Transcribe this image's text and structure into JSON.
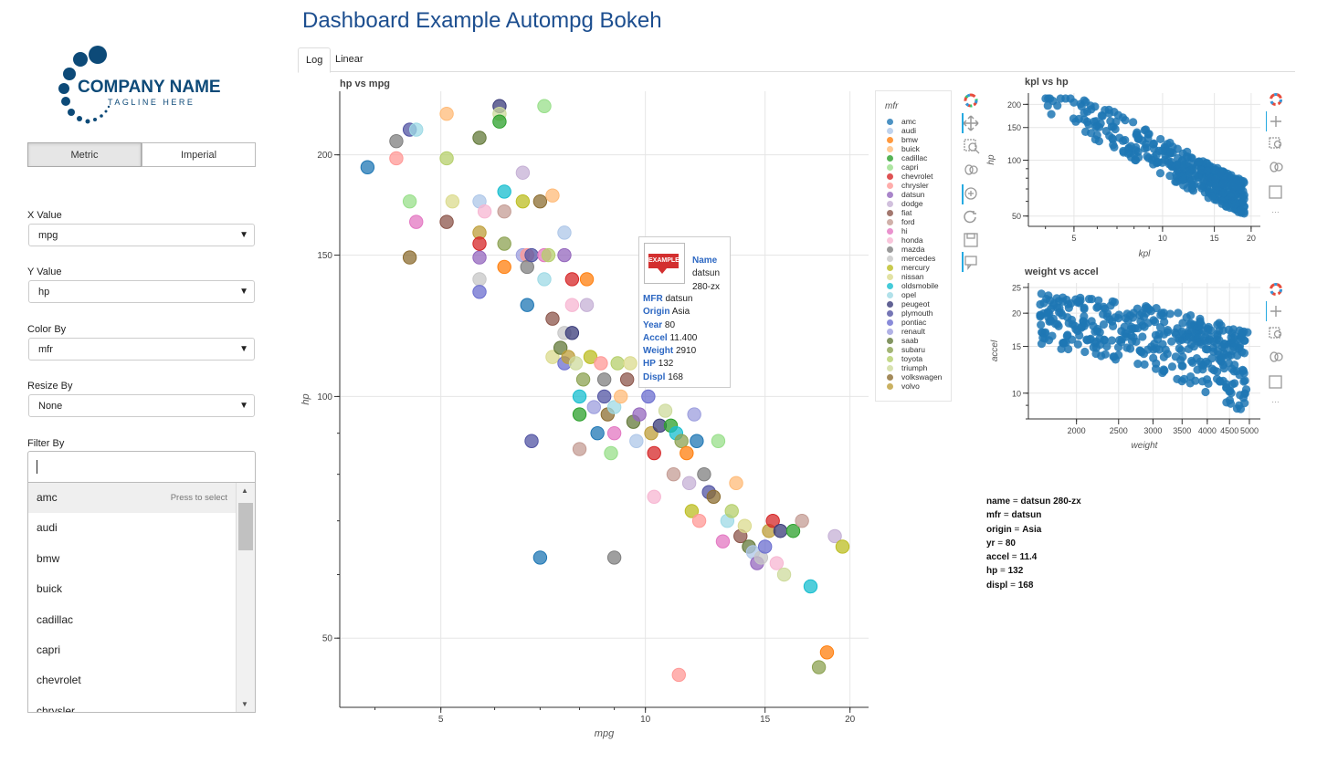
{
  "header": {
    "title": "Dashboard Example Autompg Bokeh"
  },
  "tabs": [
    {
      "label": "Log"
    },
    {
      "label": "Linear"
    }
  ],
  "logo": {
    "name": "COMPANY NAME",
    "tagline": "TAGLINE HERE"
  },
  "units": {
    "options": [
      "Metric",
      "Imperial"
    ],
    "selected": "Metric"
  },
  "controls": {
    "x": {
      "label": "X Value",
      "value": "mpg"
    },
    "y": {
      "label": "Y Value",
      "value": "hp"
    },
    "color": {
      "label": "Color By",
      "value": "mfr"
    },
    "resize": {
      "label": "Resize By",
      "value": "None"
    },
    "filter": {
      "label": "Filter By",
      "value": "",
      "hint": "Press to select",
      "options": [
        "amc",
        "audi",
        "bmw",
        "buick",
        "cadillac",
        "capri",
        "chevrolet",
        "chrysler"
      ]
    }
  },
  "main_plot": {
    "title": "hp vs mpg",
    "xlabel": "mpg",
    "ylabel": "hp",
    "legend_title": "mfr",
    "legend": [
      "amc",
      "audi",
      "bmw",
      "buick",
      "cadillac",
      "capri",
      "chevrolet",
      "chrysler",
      "datsun",
      "dodge",
      "fiat",
      "ford",
      "hi",
      "honda",
      "mazda",
      "mercedes",
      "mercury",
      "nissan",
      "oldsmobile",
      "opel",
      "peugeot",
      "plymouth",
      "pontiac",
      "renault",
      "saab",
      "subaru",
      "toyota",
      "triumph",
      "volkswagen",
      "volvo"
    ],
    "legend_colors": [
      "#1f77b4",
      "#aec7e8",
      "#ff7f0e",
      "#ffbb78",
      "#2ca02c",
      "#98df8a",
      "#d62728",
      "#ff9896",
      "#9467bd",
      "#c5b0d5",
      "#8c564b",
      "#c49c94",
      "#e377c2",
      "#f7b6d2",
      "#7f7f7f",
      "#c7c7c7",
      "#bcbd22",
      "#dbdb8d",
      "#17becf",
      "#9edae5",
      "#393b79",
      "#5254a3",
      "#6b6ecf",
      "#9c9ede",
      "#637939",
      "#8ca252",
      "#b5cf6b",
      "#cedb9c",
      "#8c6d31",
      "#bd9e39"
    ]
  },
  "tooltip": {
    "logo_text": "EXAMPLE",
    "rows": [
      {
        "k": "Name",
        "v": "datsun 280-zx"
      },
      {
        "k": "MFR",
        "v": "datsun"
      },
      {
        "k": "Origin",
        "v": "Asia"
      },
      {
        "k": "Year",
        "v": "80"
      },
      {
        "k": "Accel",
        "v": "11.400"
      },
      {
        "k": "Weight",
        "v": "2910"
      },
      {
        "k": "HP",
        "v": "132"
      },
      {
        "k": "Displ",
        "v": "168"
      }
    ]
  },
  "side_plot1": {
    "title": "kpl vs hp",
    "xlabel": "kpl",
    "ylabel": "hp",
    "color": "#1f77b4"
  },
  "side_plot2": {
    "title": "weight vs accel",
    "xlabel": "weight",
    "ylabel": "accel",
    "color": "#1f77b4"
  },
  "selection_info": [
    {
      "k": "name",
      "v": "datsun 280-zx"
    },
    {
      "k": "mfr",
      "v": "datsun"
    },
    {
      "k": "origin",
      "v": "Asia"
    },
    {
      "k": "yr",
      "v": "80"
    },
    {
      "k": "accel",
      "v": "11.4"
    },
    {
      "k": "hp",
      "v": "132"
    },
    {
      "k": "displ",
      "v": "168"
    }
  ],
  "chart_data": [
    {
      "type": "scatter",
      "title": "hp vs mpg",
      "xlabel": "mpg",
      "ylabel": "hp",
      "xscale": "log",
      "yscale": "log",
      "xlim": [
        3.55,
        21.3
      ],
      "ylim": [
        41,
        240
      ],
      "xticks": [
        "5",
        "10",
        "15",
        "20"
      ],
      "yticks": [
        "50",
        "100",
        "150",
        "200"
      ],
      "series_by": "mfr",
      "points": [
        [
          3.9,
          193
        ],
        [
          4.3,
          198
        ],
        [
          4.3,
          208
        ],
        [
          4.5,
          215
        ],
        [
          4.5,
          149
        ],
        [
          4.5,
          175
        ],
        [
          4.6,
          165
        ],
        [
          4.6,
          215
        ],
        [
          5.1,
          198
        ],
        [
          5.1,
          225
        ],
        [
          5.1,
          165
        ],
        [
          5.2,
          175
        ],
        [
          5.7,
          210
        ],
        [
          5.7,
          175
        ],
        [
          5.7,
          149
        ],
        [
          5.7,
          140
        ],
        [
          5.7,
          135
        ],
        [
          5.7,
          160
        ],
        [
          5.7,
          155
        ],
        [
          5.8,
          170
        ],
        [
          6.1,
          230
        ],
        [
          6.1,
          225
        ],
        [
          6.1,
          220
        ],
        [
          6.2,
          170
        ],
        [
          6.2,
          180
        ],
        [
          6.2,
          155
        ],
        [
          6.2,
          145
        ],
        [
          6.6,
          190
        ],
        [
          6.6,
          175
        ],
        [
          6.6,
          150
        ],
        [
          6.7,
          130
        ],
        [
          6.7,
          150
        ],
        [
          6.7,
          145
        ],
        [
          6.8,
          150
        ],
        [
          7.0,
          175
        ],
        [
          7.1,
          230
        ],
        [
          7.1,
          150
        ],
        [
          7.1,
          140
        ],
        [
          7.2,
          150
        ],
        [
          7.3,
          178
        ],
        [
          7.3,
          125
        ],
        [
          7.3,
          112
        ],
        [
          7.5,
          115
        ],
        [
          7.6,
          160
        ],
        [
          7.6,
          150
        ],
        [
          7.6,
          120
        ],
        [
          7.6,
          110
        ],
        [
          7.7,
          112
        ],
        [
          7.8,
          140
        ],
        [
          7.8,
          130
        ],
        [
          7.8,
          120
        ],
        [
          7.9,
          110
        ],
        [
          8.0,
          95
        ],
        [
          8.0,
          86
        ],
        [
          8.0,
          100
        ],
        [
          8.1,
          105
        ],
        [
          8.2,
          140
        ],
        [
          8.2,
          130
        ],
        [
          8.3,
          112
        ],
        [
          8.4,
          97
        ],
        [
          8.5,
          90
        ],
        [
          8.6,
          110
        ],
        [
          8.7,
          105
        ],
        [
          8.7,
          100
        ],
        [
          8.8,
          95
        ],
        [
          8.9,
          85
        ],
        [
          9.0,
          90
        ],
        [
          9.0,
          97
        ],
        [
          9.1,
          110
        ],
        [
          9.2,
          100
        ],
        [
          9.4,
          105
        ],
        [
          9.5,
          110
        ],
        [
          9.6,
          93
        ],
        [
          9.7,
          88
        ],
        [
          9.8,
          95
        ],
        [
          10.0,
          105
        ],
        [
          10.1,
          100
        ],
        [
          10.2,
          90
        ],
        [
          10.3,
          85
        ],
        [
          10.3,
          75
        ],
        [
          10.5,
          92
        ],
        [
          10.7,
          96
        ],
        [
          10.9,
          92
        ],
        [
          11.0,
          80
        ],
        [
          11.1,
          90
        ],
        [
          11.3,
          88
        ],
        [
          11.5,
          85
        ],
        [
          11.6,
          78
        ],
        [
          11.7,
          72
        ],
        [
          11.8,
          95
        ],
        [
          11.9,
          88
        ],
        [
          12.0,
          70
        ],
        [
          12.2,
          80
        ],
        [
          12.4,
          76
        ],
        [
          12.6,
          75
        ],
        [
          12.8,
          88
        ],
        [
          13.0,
          66
        ],
        [
          13.2,
          70
        ],
        [
          13.4,
          72
        ],
        [
          13.6,
          78
        ],
        [
          13.8,
          67
        ],
        [
          14.0,
          69
        ],
        [
          14.2,
          65
        ],
        [
          14.4,
          64
        ],
        [
          14.6,
          62
        ],
        [
          14.8,
          63
        ],
        [
          15.0,
          65
        ],
        [
          15.2,
          68
        ],
        [
          15.4,
          70
        ],
        [
          15.6,
          62
        ],
        [
          15.8,
          68
        ],
        [
          16.0,
          60
        ],
        [
          16.5,
          68
        ],
        [
          17.0,
          70
        ],
        [
          17.5,
          58
        ],
        [
          18.0,
          46
        ],
        [
          18.5,
          48
        ],
        [
          19.0,
          67
        ],
        [
          19.5,
          65
        ],
        [
          10.0,
          132
        ],
        [
          7.0,
          63
        ],
        [
          11.2,
          45
        ],
        [
          9.0,
          63
        ],
        [
          6.8,
          88
        ]
      ]
    },
    {
      "type": "scatter",
      "title": "kpl vs hp",
      "xlabel": "kpl",
      "ylabel": "hp",
      "xscale": "log",
      "yscale": "log",
      "xlim": [
        3.5,
        21.5
      ],
      "ylim": [
        44,
        230
      ],
      "xticks": [
        "5",
        "10",
        "15",
        "20"
      ],
      "yticks": [
        "50",
        "100",
        "150",
        "200"
      ]
    },
    {
      "type": "scatter",
      "title": "weight vs accel",
      "xlabel": "weight",
      "ylabel": "accel",
      "xscale": "log",
      "yscale": "log",
      "xlim": [
        1550,
        5300
      ],
      "ylim": [
        8,
        26
      ],
      "xticks": [
        "2000",
        "2500",
        "3000",
        "3500",
        "4000",
        "4500",
        "5000"
      ],
      "yticks": [
        "10",
        "15",
        "20",
        "25"
      ]
    }
  ]
}
